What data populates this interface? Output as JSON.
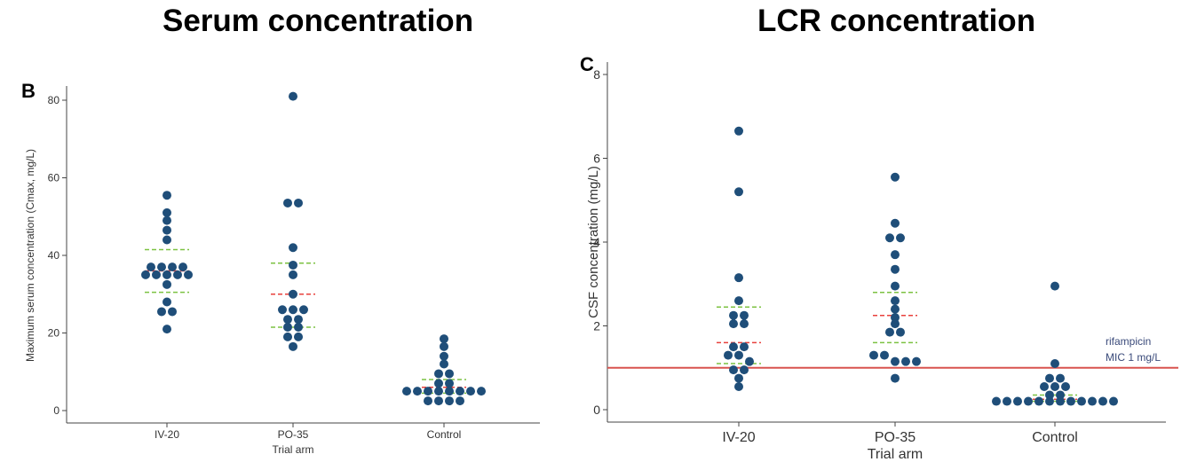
{
  "titles": {
    "left": "Serum concentration",
    "right": "LCR concentration"
  },
  "colors": {
    "dot": "#1f4e79",
    "median": "#e8413c",
    "iqr": "#7cc242",
    "mic_line": "#d9534f",
    "annotation": "#3a4a7a"
  },
  "chart_data": [
    {
      "type": "scatter",
      "panel_label": "B",
      "title": "Serum concentration",
      "xlabel": "Trial arm",
      "ylabel": "Maximum serum concentration (Cmax, mg/L)",
      "categories": [
        "IV-20",
        "PO-35",
        "Control"
      ],
      "ylim": [
        0,
        80
      ],
      "yticks": [
        0,
        20,
        40,
        60,
        80
      ],
      "grid": false,
      "series": [
        {
          "category": "IV-20",
          "values": [
            55.5,
            51,
            49,
            46.5,
            44,
            37,
            37,
            37,
            37,
            35,
            35,
            35,
            35,
            35,
            32.5,
            28,
            25.5,
            25.5,
            21
          ],
          "median": 36,
          "q1": 30.5,
          "q3": 41.5
        },
        {
          "category": "PO-35",
          "values": [
            81,
            53.5,
            53.5,
            42,
            37.5,
            35,
            30,
            26,
            26,
            26,
            23.5,
            23.5,
            21.5,
            21.5,
            19,
            19,
            16.5
          ],
          "median": 30,
          "q1": 21.5,
          "q3": 38
        },
        {
          "category": "Control",
          "values": [
            18.5,
            16.5,
            14,
            12,
            9.5,
            9.5,
            7,
            7,
            5,
            5,
            5,
            5,
            5,
            5,
            5,
            5,
            2.5,
            2.5,
            2.5,
            2.5
          ],
          "median": 6,
          "q1": 4.5,
          "q3": 8
        }
      ]
    },
    {
      "type": "scatter",
      "panel_label": "C",
      "title": "LCR concentration",
      "xlabel": "Trial arm",
      "ylabel": "CSF concentration (mg/L)",
      "categories": [
        "IV-20",
        "PO-35",
        "Control"
      ],
      "ylim": [
        0,
        8
      ],
      "yticks": [
        0,
        2,
        4,
        6,
        8
      ],
      "grid": false,
      "reference_line": {
        "value": 1,
        "label_line1": "rifampicin",
        "label_line2": "MIC 1 mg/L"
      },
      "series": [
        {
          "category": "IV-20",
          "values": [
            6.65,
            5.2,
            3.15,
            2.6,
            2.25,
            2.25,
            2.05,
            2.05,
            1.5,
            1.5,
            1.3,
            1.3,
            1.15,
            0.95,
            0.95,
            0.75,
            0.55
          ],
          "median": 1.6,
          "q1": 1.1,
          "q3": 2.45
        },
        {
          "category": "PO-35",
          "values": [
            5.55,
            4.45,
            4.1,
            4.1,
            3.7,
            3.35,
            2.95,
            2.6,
            2.4,
            2.2,
            2.05,
            1.85,
            1.85,
            1.3,
            1.3,
            1.15,
            1.15,
            1.15,
            0.75
          ],
          "median": 2.25,
          "q1": 1.6,
          "q3": 2.8
        },
        {
          "category": "Control",
          "values": [
            2.95,
            1.1,
            0.75,
            0.75,
            0.55,
            0.55,
            0.55,
            0.35,
            0.35,
            0.2,
            0.2,
            0.2,
            0.2,
            0.2,
            0.2,
            0.2,
            0.2,
            0.2,
            0.2,
            0.2,
            0.2
          ],
          "median": 0.25,
          "q1": 0.2,
          "q3": 0.35
        }
      ]
    }
  ]
}
